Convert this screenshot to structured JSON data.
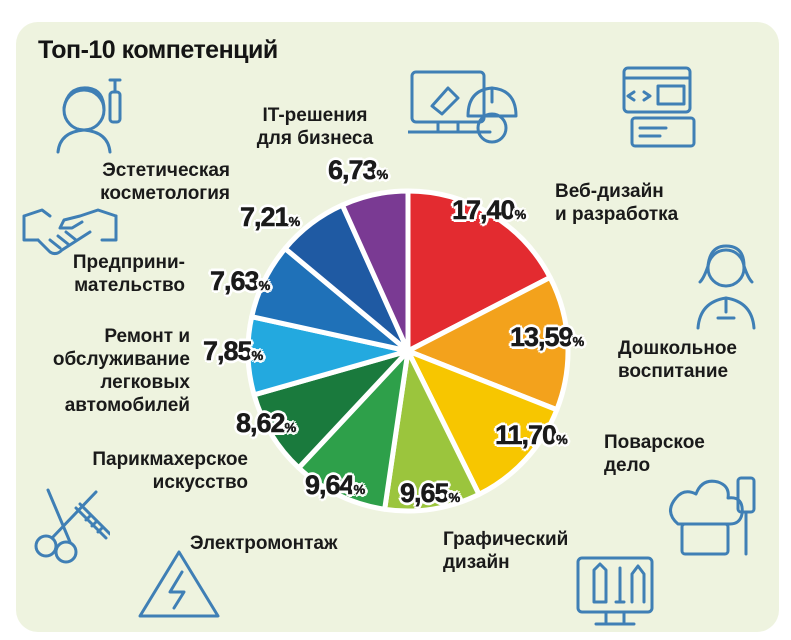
{
  "title": "Топ-10 компетенций",
  "colors": [
    "#e32b30",
    "#f3a21c",
    "#f7c600",
    "#9bc53d",
    "#2ea04a",
    "#1a7a3d",
    "#23a9df",
    "#1f71b8",
    "#1f5aa3",
    "#7a3a93"
  ],
  "chart_data": {
    "type": "pie",
    "title": "Топ-10 компетенций",
    "unit": "%",
    "slices": [
      {
        "label": "Веб-дизайн\nи разработка",
        "value": 17.4,
        "text": "17,40"
      },
      {
        "label": "Дошкольное\nвоспитание",
        "value": 13.59,
        "text": "13,59"
      },
      {
        "label": "Поварское\nдело",
        "value": 11.7,
        "text": "11,70"
      },
      {
        "label": "Графический\nдизайн",
        "value": 9.65,
        "text": "9,65"
      },
      {
        "label": "Электромонтаж",
        "value": 9.64,
        "text": "9,64"
      },
      {
        "label": "Парикмахерское\nискусство",
        "value": 8.62,
        "text": "8,62"
      },
      {
        "label": "Ремонт и\nобслуживание\nлегковых\nавтомобилей",
        "value": 7.85,
        "text": "7,85"
      },
      {
        "label": "Предприни-\nмательство",
        "value": 7.63,
        "text": "7,63"
      },
      {
        "label": "Эстетическая\nкосметология",
        "value": 7.21,
        "text": "7,21"
      },
      {
        "label": "IT-решения\nдля бизнеса",
        "value": 6.73,
        "text": "6,73"
      }
    ],
    "percent_sign": "%"
  },
  "icons": [
    "cosmetology-icon",
    "it-solutions-icon",
    "web-design-icon",
    "handshake-icon",
    "teacher-icon",
    "barber-icon",
    "chef-icon",
    "electrical-icon",
    "graphic-design-icon"
  ]
}
